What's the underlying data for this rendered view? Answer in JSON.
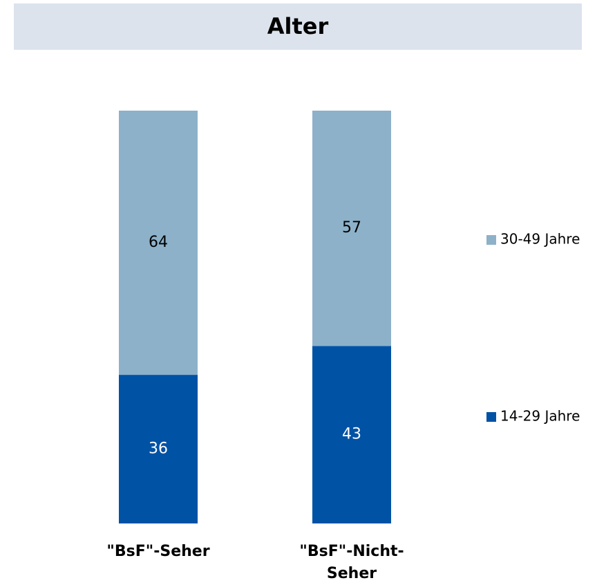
{
  "chart_data": {
    "type": "stacked_bar",
    "title": "Alter",
    "categories": [
      "\"BsF\"-Seher",
      "\"BsF\"-Nicht-Seher"
    ],
    "series": [
      {
        "name": "14-29 Jahre",
        "color": "#0052a5",
        "values": [
          36,
          43
        ]
      },
      {
        "name": "30-49 Jahre",
        "color": "#8db1c9",
        "values": [
          64,
          57
        ]
      }
    ],
    "ylim": [
      0,
      100
    ]
  }
}
